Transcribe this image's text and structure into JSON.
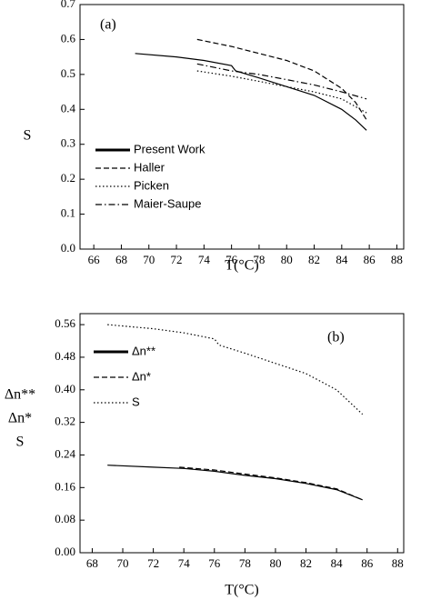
{
  "chart_data": [
    {
      "type": "line",
      "annotation": "(a)",
      "x_label": "T(°C)",
      "y_label": "S",
      "xlim": [
        65,
        88.5
      ],
      "xticks": [
        66,
        68,
        70,
        72,
        74,
        76,
        78,
        80,
        82,
        84,
        86,
        88
      ],
      "ylim": [
        0,
        0.7
      ],
      "yticks": [
        {
          "value": 0,
          "label": "0.0"
        },
        0.1,
        0.2,
        0.3,
        0.4,
        0.5,
        0.6,
        0.7
      ],
      "series": [
        {
          "name": "Present Work",
          "color": "#000000",
          "dash": "solid",
          "x": [
            69,
            72,
            74,
            76,
            76.3,
            78,
            80,
            82,
            84,
            85,
            85.8
          ],
          "values": [
            0.56,
            0.55,
            0.54,
            0.525,
            0.51,
            0.49,
            0.465,
            0.44,
            0.4,
            0.37,
            0.34
          ]
        },
        {
          "name": "Haller",
          "color": "#000000",
          "dash": "dashed",
          "x": [
            73.5,
            76,
            78,
            80,
            82,
            84,
            85,
            85.8
          ],
          "values": [
            0.6,
            0.58,
            0.56,
            0.54,
            0.51,
            0.46,
            0.42,
            0.37
          ]
        },
        {
          "name": "Picken",
          "color": "#000000",
          "dash": "dotted",
          "x": [
            73.5,
            76,
            78,
            80,
            82,
            84,
            85.8
          ],
          "values": [
            0.51,
            0.495,
            0.48,
            0.465,
            0.45,
            0.43,
            0.39
          ]
        },
        {
          "name": "Maier-Saupe",
          "color": "#000000",
          "dash": "dashdot",
          "x": [
            73.5,
            76,
            78,
            80,
            82,
            84,
            85.8
          ],
          "values": [
            0.53,
            0.51,
            0.5,
            0.485,
            0.47,
            0.45,
            0.43
          ]
        }
      ]
    },
    {
      "type": "line",
      "annotation": "(b)",
      "x_label": "T(°C)",
      "y_label": [
        "Δn**",
        "Δn*",
        "S"
      ],
      "xlim": [
        67.2,
        88.4
      ],
      "xticks": [
        68,
        70,
        72,
        74,
        76,
        78,
        80,
        82,
        84,
        86,
        88
      ],
      "ylim": [
        0,
        0.587
      ],
      "yticks": [
        {
          "value": 0,
          "label": "0.00"
        },
        0.08,
        0.16,
        0.24,
        0.32,
        {
          "value": 0.4,
          "label": "0.40"
        },
        0.48,
        0.56
      ],
      "series": [
        {
          "name": "Δn**",
          "color": "#000000",
          "dash": "solid",
          "x": [
            69,
            72,
            74,
            76,
            78,
            80,
            82,
            84,
            85.7
          ],
          "values": [
            0.215,
            0.21,
            0.207,
            0.2,
            0.19,
            0.182,
            0.17,
            0.155,
            0.13
          ]
        },
        {
          "name": "Δn*",
          "color": "#000000",
          "dash": "dashed",
          "x": [
            73.7,
            76,
            78,
            80,
            82,
            84,
            85.7
          ],
          "values": [
            0.21,
            0.203,
            0.193,
            0.184,
            0.172,
            0.157,
            0.13
          ]
        },
        {
          "name": "S",
          "color": "#000000",
          "dash": "dotted",
          "x": [
            69,
            72,
            74,
            76,
            76.3,
            78,
            80,
            82,
            84,
            85.7
          ],
          "values": [
            0.56,
            0.55,
            0.54,
            0.525,
            0.51,
            0.49,
            0.465,
            0.44,
            0.4,
            0.34
          ]
        }
      ]
    }
  ]
}
